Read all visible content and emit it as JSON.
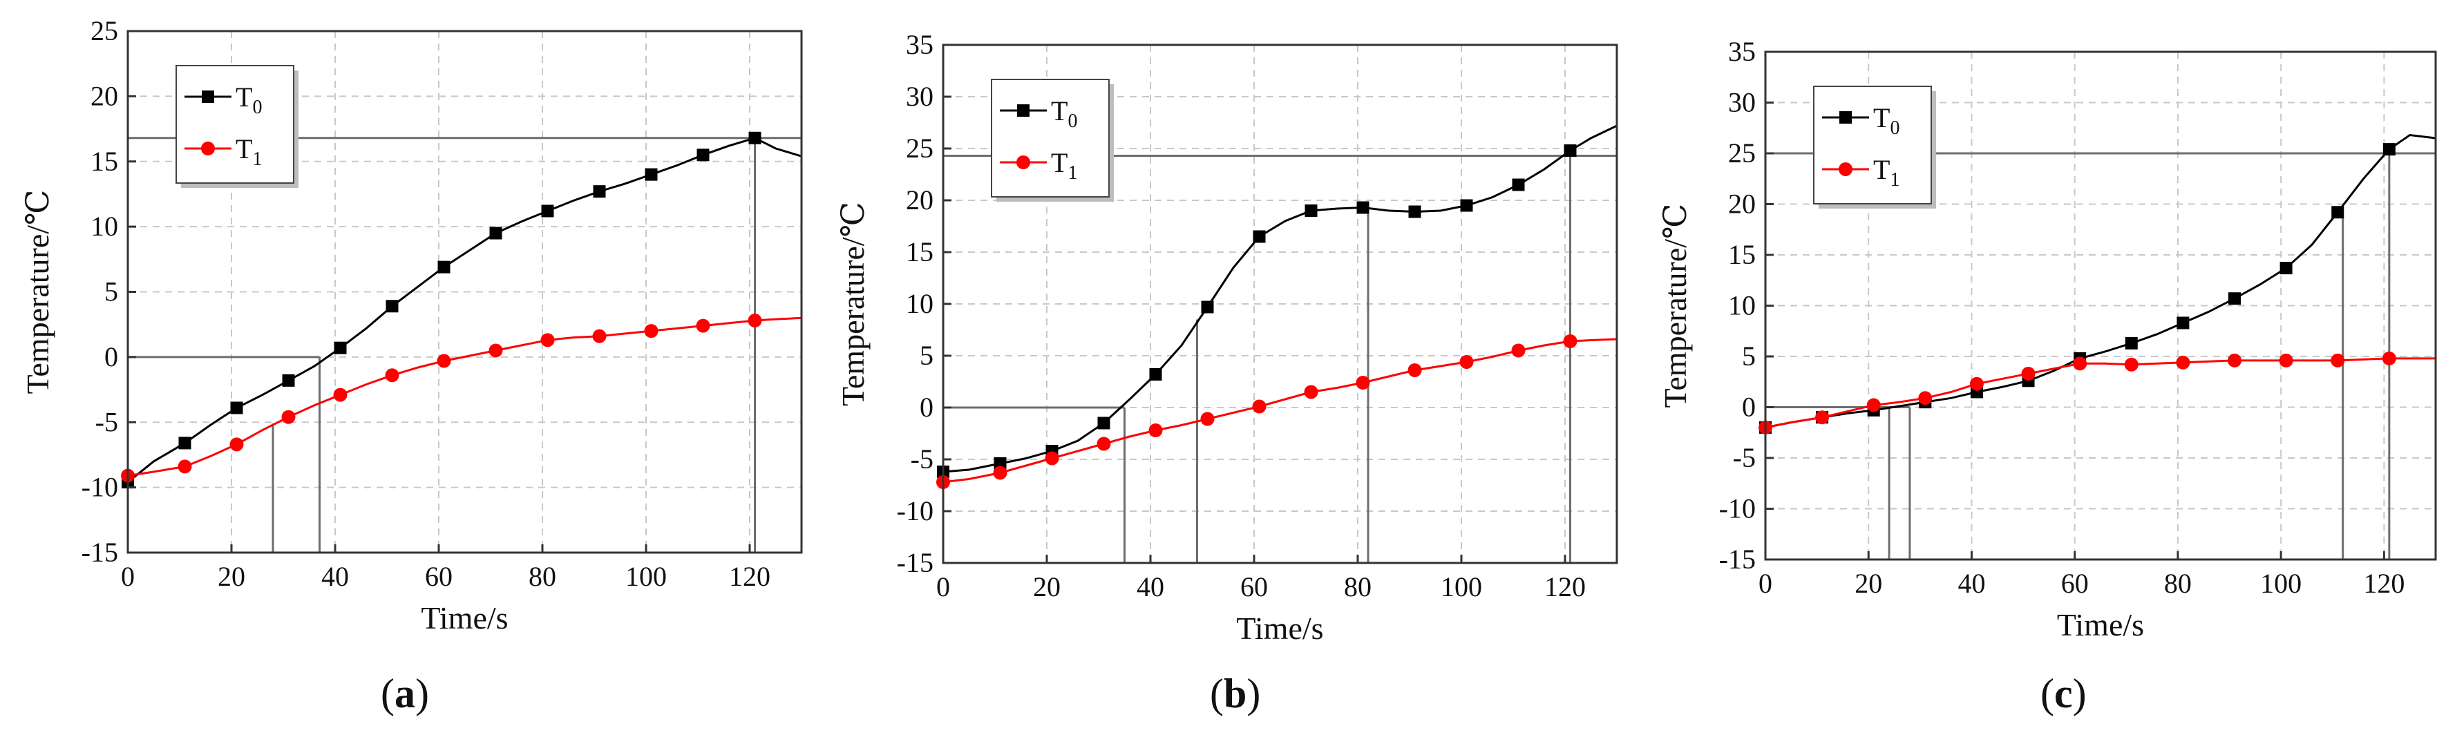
{
  "chart_data": [
    {
      "type": "line",
      "panel_label": "a",
      "xlabel": "Time/s",
      "ylabel": "Temperature/℃",
      "xlim": [
        0,
        130
      ],
      "ylim": [
        -15,
        25
      ],
      "xticks": [
        0,
        20,
        40,
        60,
        80,
        100,
        120
      ],
      "yticks": [
        -15,
        -10,
        -5,
        0,
        5,
        10,
        15,
        20,
        25
      ],
      "grid": true,
      "legend_position": "top-left",
      "series": [
        {
          "name": "T0",
          "label_main": "T",
          "label_sub": "0",
          "color": "#000000",
          "marker": "square",
          "curve_x": [
            0,
            5,
            11,
            16,
            21,
            26,
            31,
            36,
            41,
            46,
            51,
            56,
            61,
            66,
            71,
            76,
            81,
            86,
            91,
            96,
            101,
            106,
            111,
            116,
            121,
            125,
            130
          ],
          "curve_y": [
            -9.6,
            -8.0,
            -6.6,
            -5.2,
            -3.9,
            -2.9,
            -1.8,
            -0.7,
            0.7,
            2.2,
            3.9,
            5.4,
            6.9,
            8.2,
            9.5,
            10.4,
            11.2,
            12.0,
            12.7,
            13.3,
            14.0,
            14.7,
            15.5,
            16.2,
            16.8,
            16.0,
            15.4
          ],
          "markers_x": [
            0,
            11,
            21,
            31,
            41,
            51,
            61,
            71,
            81,
            91,
            101,
            111,
            121
          ],
          "markers_y": [
            -9.6,
            -6.6,
            -3.9,
            -1.8,
            0.7,
            3.9,
            6.9,
            9.5,
            11.2,
            12.7,
            14.0,
            15.5,
            16.8
          ]
        },
        {
          "name": "T1",
          "label_main": "T",
          "label_sub": "1",
          "color": "#ff0000",
          "marker": "circle",
          "curve_x": [
            0,
            5,
            11,
            16,
            21,
            26,
            31,
            36,
            41,
            46,
            51,
            56,
            61,
            66,
            71,
            76,
            81,
            86,
            91,
            96,
            101,
            106,
            111,
            116,
            121,
            125,
            130
          ],
          "curve_y": [
            -9.1,
            -8.8,
            -8.4,
            -7.6,
            -6.7,
            -5.6,
            -4.6,
            -3.7,
            -2.9,
            -2.1,
            -1.4,
            -0.8,
            -0.3,
            0.1,
            0.5,
            0.9,
            1.3,
            1.5,
            1.6,
            1.8,
            2.0,
            2.2,
            2.4,
            2.6,
            2.8,
            2.9,
            3.0
          ],
          "markers_x": [
            0,
            11,
            21,
            31,
            41,
            51,
            61,
            71,
            81,
            91,
            101,
            111,
            121
          ],
          "markers_y": [
            -9.1,
            -8.4,
            -6.7,
            -4.6,
            -2.9,
            -1.4,
            -0.3,
            0.5,
            1.3,
            1.6,
            2.0,
            2.4,
            2.8
          ]
        }
      ],
      "reference_lines": [
        {
          "orientation": "h",
          "value": 16.8,
          "from": 0,
          "to": 130
        },
        {
          "orientation": "h",
          "value": 0,
          "from": 0,
          "to": 37
        },
        {
          "orientation": "v",
          "value": 28,
          "from": -15,
          "to": -5.1
        },
        {
          "orientation": "v",
          "value": 37,
          "from": -15,
          "to": 0
        },
        {
          "orientation": "v",
          "value": 121,
          "from": -15,
          "to": 16.8
        }
      ]
    },
    {
      "type": "line",
      "panel_label": "b",
      "xlabel": "Time/s",
      "ylabel": "Temperature/℃",
      "xlim": [
        0,
        130
      ],
      "ylim": [
        -15,
        35
      ],
      "xticks": [
        0,
        20,
        40,
        60,
        80,
        100,
        120
      ],
      "yticks": [
        -15,
        -10,
        -5,
        0,
        5,
        10,
        15,
        20,
        25,
        30,
        35
      ],
      "grid": true,
      "legend_position": "top-left",
      "series": [
        {
          "name": "T0",
          "label_main": "T",
          "label_sub": "0",
          "color": "#000000",
          "marker": "square",
          "curve_x": [
            0,
            5,
            11,
            16,
            21,
            26,
            31,
            36,
            41,
            46,
            51,
            56,
            61,
            66,
            71,
            76,
            81,
            86,
            91,
            96,
            101,
            106,
            111,
            116,
            121,
            125,
            130
          ],
          "curve_y": [
            -6.2,
            -6.0,
            -5.4,
            -4.9,
            -4.2,
            -3.2,
            -1.5,
            0.8,
            3.2,
            6.0,
            9.7,
            13.5,
            16.5,
            18.0,
            19.0,
            19.2,
            19.3,
            19.0,
            18.9,
            19.0,
            19.5,
            20.3,
            21.5,
            23.0,
            24.8,
            26.0,
            27.2
          ],
          "markers_x": [
            0,
            11,
            21,
            31,
            41,
            51,
            61,
            71,
            81,
            91,
            101,
            111,
            121
          ],
          "markers_y": [
            -6.2,
            -5.4,
            -4.2,
            -1.5,
            3.2,
            9.7,
            16.5,
            19.0,
            19.3,
            18.9,
            19.5,
            21.5,
            24.8
          ]
        },
        {
          "name": "T1",
          "label_main": "T",
          "label_sub": "1",
          "color": "#ff0000",
          "marker": "circle",
          "curve_x": [
            0,
            5,
            11,
            16,
            21,
            26,
            31,
            36,
            41,
            46,
            51,
            56,
            61,
            66,
            71,
            76,
            81,
            86,
            91,
            96,
            101,
            106,
            111,
            116,
            121,
            125,
            130
          ],
          "curve_y": [
            -7.2,
            -6.9,
            -6.3,
            -5.6,
            -4.9,
            -4.2,
            -3.5,
            -2.8,
            -2.2,
            -1.7,
            -1.1,
            -0.5,
            0.1,
            0.8,
            1.5,
            1.9,
            2.4,
            3.0,
            3.6,
            4.0,
            4.4,
            4.9,
            5.5,
            6.0,
            6.4,
            6.5,
            6.6
          ],
          "markers_x": [
            0,
            11,
            21,
            31,
            41,
            51,
            61,
            71,
            81,
            91,
            101,
            111,
            121
          ],
          "markers_y": [
            -7.2,
            -6.3,
            -4.9,
            -3.5,
            -2.2,
            -1.1,
            0.1,
            1.5,
            2.4,
            3.6,
            4.4,
            5.5,
            6.4
          ]
        }
      ],
      "reference_lines": [
        {
          "orientation": "h",
          "value": 24.3,
          "from": 0,
          "to": 130
        },
        {
          "orientation": "h",
          "value": 0,
          "from": 0,
          "to": 35
        },
        {
          "orientation": "v",
          "value": 35,
          "from": -15,
          "to": 0
        },
        {
          "orientation": "v",
          "value": 49,
          "from": -15,
          "to": 8.5
        },
        {
          "orientation": "v",
          "value": 82,
          "from": -15,
          "to": 19.3
        },
        {
          "orientation": "v",
          "value": 121,
          "from": -15,
          "to": 24.8
        }
      ]
    },
    {
      "type": "line",
      "panel_label": "c",
      "xlabel": "Time/s",
      "ylabel": "Temperature/℃",
      "xlim": [
        0,
        130
      ],
      "ylim": [
        -15,
        35
      ],
      "xticks": [
        0,
        20,
        40,
        60,
        80,
        100,
        120
      ],
      "yticks": [
        -15,
        -10,
        -5,
        0,
        5,
        10,
        15,
        20,
        25,
        30,
        35
      ],
      "grid": true,
      "legend_position": "top-left",
      "series": [
        {
          "name": "T0",
          "label_main": "T",
          "label_sub": "0",
          "color": "#000000",
          "marker": "square",
          "curve_x": [
            0,
            5,
            11,
            16,
            21,
            26,
            31,
            36,
            41,
            46,
            51,
            56,
            61,
            66,
            71,
            76,
            81,
            86,
            91,
            96,
            101,
            106,
            111,
            116,
            121,
            125,
            130
          ],
          "curve_y": [
            -2.0,
            -1.5,
            -1.0,
            -0.6,
            -0.3,
            0.1,
            0.5,
            0.9,
            1.5,
            2.0,
            2.6,
            3.6,
            4.8,
            5.5,
            6.3,
            7.2,
            8.3,
            9.4,
            10.7,
            12.1,
            13.7,
            16.0,
            19.2,
            22.5,
            25.4,
            26.8,
            26.5
          ],
          "markers_x": [
            0,
            11,
            21,
            31,
            41,
            51,
            61,
            71,
            81,
            91,
            101,
            111,
            121
          ],
          "markers_y": [
            -2.0,
            -1.0,
            -0.3,
            0.5,
            1.5,
            2.6,
            4.8,
            6.3,
            8.3,
            10.7,
            13.7,
            19.2,
            25.4
          ]
        },
        {
          "name": "T1",
          "label_main": "T",
          "label_sub": "1",
          "color": "#ff0000",
          "marker": "circle",
          "curve_x": [
            0,
            5,
            11,
            16,
            21,
            26,
            31,
            36,
            41,
            46,
            51,
            56,
            61,
            66,
            71,
            76,
            81,
            86,
            91,
            96,
            101,
            106,
            111,
            116,
            121,
            125,
            130
          ],
          "curve_y": [
            -2.0,
            -1.5,
            -1.0,
            -0.4,
            0.2,
            0.5,
            0.9,
            1.5,
            2.3,
            2.8,
            3.3,
            3.8,
            4.3,
            4.3,
            4.2,
            4.3,
            4.4,
            4.5,
            4.6,
            4.6,
            4.6,
            4.6,
            4.6,
            4.7,
            4.8,
            4.8,
            4.8
          ],
          "markers_x": [
            0,
            11,
            21,
            31,
            41,
            51,
            61,
            71,
            81,
            91,
            101,
            111,
            121
          ],
          "markers_y": [
            -2.0,
            -1.0,
            0.2,
            0.9,
            2.3,
            3.3,
            4.3,
            4.2,
            4.4,
            4.6,
            4.6,
            4.6,
            4.8
          ]
        }
      ],
      "reference_lines": [
        {
          "orientation": "h",
          "value": 25.0,
          "from": 0,
          "to": 130
        },
        {
          "orientation": "h",
          "value": 0,
          "from": 0,
          "to": 28
        },
        {
          "orientation": "v",
          "value": 24,
          "from": -15,
          "to": 0
        },
        {
          "orientation": "v",
          "value": 28,
          "from": -15,
          "to": 0
        },
        {
          "orientation": "v",
          "value": 112,
          "from": -15,
          "to": 19.2
        },
        {
          "orientation": "v",
          "value": 121,
          "from": -15,
          "to": 25.4
        }
      ]
    }
  ]
}
